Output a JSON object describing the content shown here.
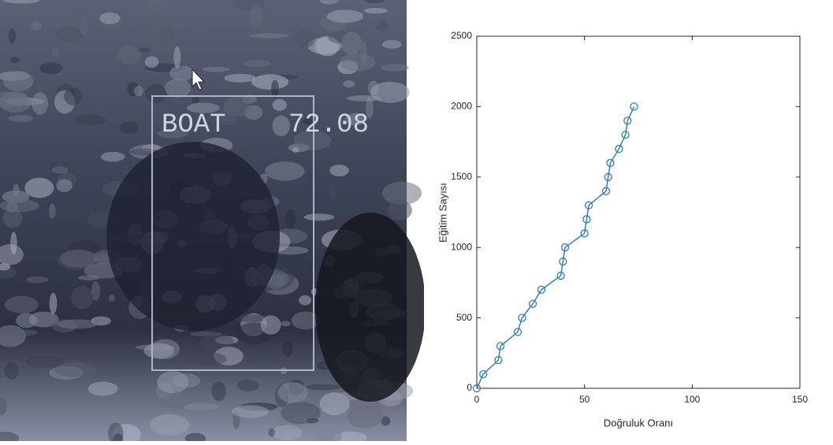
{
  "photo_annotation": {
    "label": "BOAT",
    "score": "72.08"
  },
  "chart_data": {
    "type": "line",
    "xlabel": "Doğruluk Oranı",
    "ylabel": "Eğitim Sayısı",
    "x": [
      0,
      3,
      10,
      11,
      19,
      21,
      26,
      30,
      39,
      40,
      41,
      50,
      51,
      52,
      60,
      61,
      62,
      66,
      69,
      70,
      73
    ],
    "values": [
      0,
      100,
      200,
      300,
      400,
      500,
      600,
      700,
      800,
      900,
      1000,
      1100,
      1200,
      1300,
      1400,
      1500,
      1600,
      1700,
      1800,
      1900,
      2000
    ],
    "color": "#2f7fc1",
    "xlim": [
      0,
      150
    ],
    "xticks": [
      0,
      50,
      100,
      150
    ],
    "ylim": [
      0,
      2500
    ],
    "yticks": [
      0,
      500,
      1000,
      1500,
      2000,
      2500
    ],
    "grid": false
  }
}
